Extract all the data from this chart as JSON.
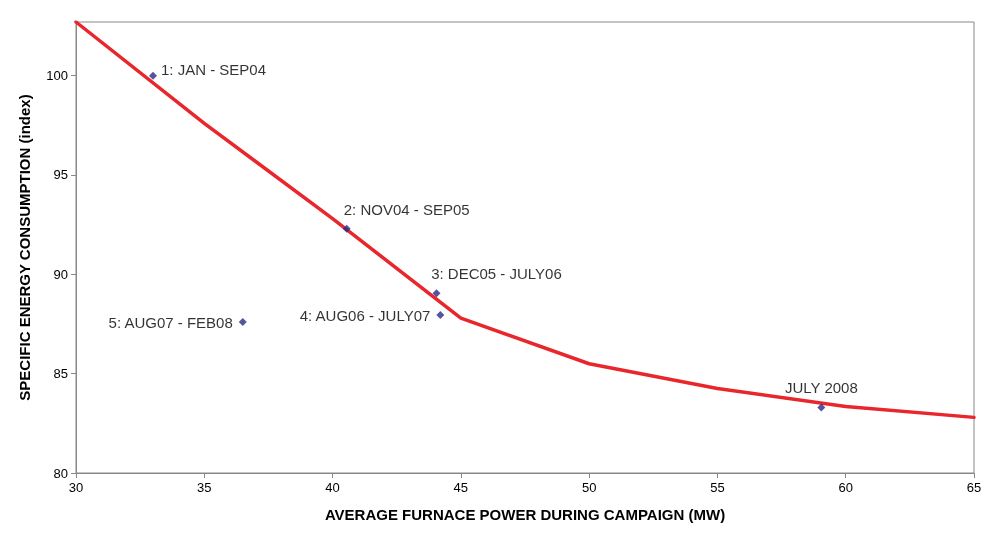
{
  "chart_data": {
    "type": "scatter",
    "xlabel": "AVERAGE FURNACE POWER DURING CAMPAIGN (MW)",
    "ylabel": "SPECIFIC ENERGY CONSUMPTION (index)",
    "xlim": [
      30,
      65
    ],
    "xticks": [
      30,
      35,
      40,
      45,
      50,
      55,
      60,
      65
    ],
    "ylim": [
      80,
      102.7
    ],
    "yticks": [
      80,
      85,
      90,
      95,
      100
    ],
    "grid": false,
    "series": [
      {
        "type": "line",
        "color": "#e8262b",
        "x": [
          30,
          35,
          40,
          45,
          50,
          55,
          60,
          65
        ],
        "values": [
          102.7,
          97.6,
          92.8,
          87.8,
          85.5,
          84.25,
          83.35,
          82.8
        ],
        "marker": "none",
        "line_style": "solid"
      },
      {
        "color": "#2b2a86",
        "x": [
          33.0,
          40.55,
          44.05,
          44.2,
          36.5,
          59.05
        ],
        "values": [
          100.0,
          92.3,
          89.05,
          87.95,
          87.6,
          83.3
        ],
        "marker": "diamond"
      }
    ],
    "annotations": [
      {
        "text": "1: JAN - SEP04",
        "x": 33.0,
        "y": 100.0
      },
      {
        "text": "2: NOV04 - SEP05",
        "x": 40.55,
        "y": 92.3
      },
      {
        "text": "3: DEC05 - JULY06",
        "x": 44.05,
        "y": 89.05
      },
      {
        "text": "4: AUG06 - JULY07",
        "x": 44.2,
        "y": 87.95
      },
      {
        "text": "5: AUG07 - FEB08",
        "x": 36.5,
        "y": 87.6
      },
      {
        "text": "JULY 2008",
        "x": 59.05,
        "y": 83.3
      }
    ]
  }
}
